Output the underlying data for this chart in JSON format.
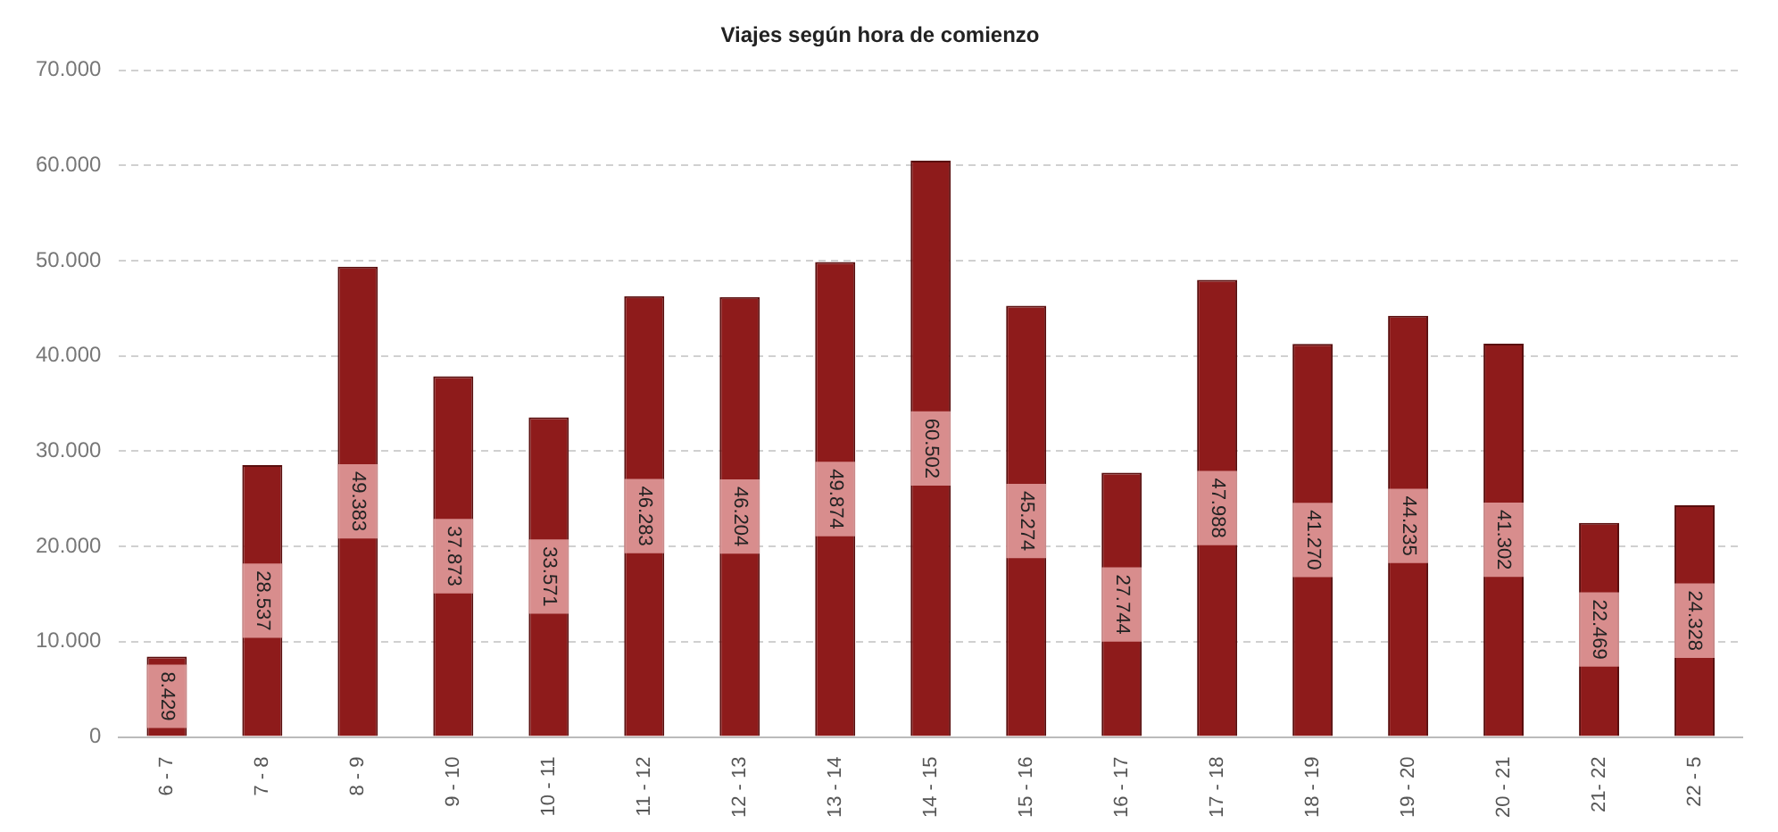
{
  "chart_data": {
    "type": "bar",
    "title": "Viajes según hora de comienzo",
    "categories": [
      "6 - 7",
      "7 - 8",
      "8 - 9",
      "9 - 10",
      "10 - 11",
      "11 - 12",
      "12 - 13",
      "13 - 14",
      "14 - 15",
      "15 - 16",
      "16 - 17",
      "17 - 18",
      "18 - 19",
      "19 - 20",
      "20 - 21",
      "21- 22",
      "22 - 5"
    ],
    "values": [
      8429,
      28537,
      49383,
      37873,
      33571,
      46283,
      46204,
      49874,
      60502,
      45274,
      27744,
      47988,
      41270,
      44235,
      41302,
      22469,
      24328
    ],
    "value_labels": [
      "8.429",
      "28.537",
      "49.383",
      "37.873",
      "33.571",
      "46.283",
      "46.204",
      "49.874",
      "60.502",
      "45.274",
      "27.744",
      "47.988",
      "41.270",
      "44.235",
      "41.302",
      "22.469",
      "24.328"
    ],
    "color": "#8e1b1b",
    "ylim": [
      0,
      70000
    ],
    "yticks": [
      {
        "value": 0,
        "label": "0"
      },
      {
        "value": 10000,
        "label": "10.000"
      },
      {
        "value": 20000,
        "label": "20.000"
      },
      {
        "value": 30000,
        "label": "30.000"
      },
      {
        "value": 40000,
        "label": "40.000"
      },
      {
        "value": 50000,
        "label": "50.000"
      },
      {
        "value": 60000,
        "label": "60.000"
      },
      {
        "value": 70000,
        "label": "70.000"
      }
    ],
    "grid": "y"
  }
}
